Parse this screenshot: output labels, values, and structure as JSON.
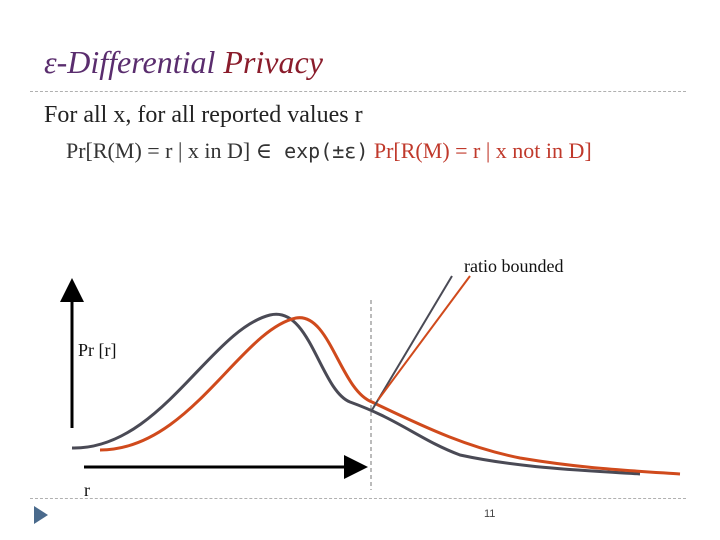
{
  "slide": {
    "title_part1": "ε-Differential ",
    "title_part2": "Privacy",
    "line1": "For all x, for all reported values r",
    "line2_a": "Pr[R(M) = r | x in D] ",
    "line2_in": "∈",
    "line2_exp": " exp(±ε)",
    "line2_b": " Pr[R(M) = r | x not in D]",
    "annotation": "ratio bounded",
    "y_axis_label": "Pr [r]",
    "x_axis_label": "r",
    "slide_number": "11"
  },
  "colors": {
    "title_accent": "#8a1c2b",
    "title_main": "#5a2d6e",
    "curve_in_D": "#4a4a55",
    "curve_not_in_D": "#d04a1c"
  },
  "icons": {
    "nav": "play-triangle-icon"
  }
}
